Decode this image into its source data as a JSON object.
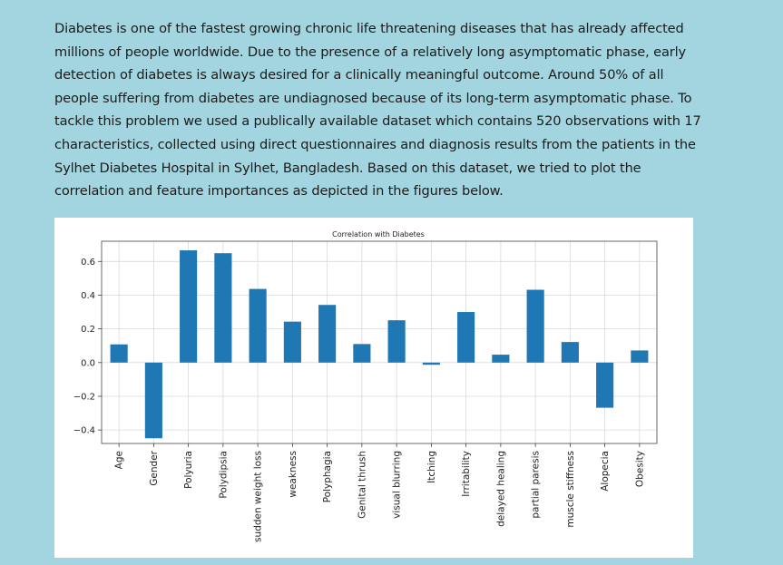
{
  "page": {
    "intro_text": "Diabetes is one of the fastest growing chronic life threatening diseases that has already affected millions of people worldwide. Due to the presence of a relatively long asymptomatic phase, early detection of diabetes is always desired for a clinically meaningful outcome. Around 50% of all people suffering from diabetes are undiagnosed because of its long-term asymptomatic phase. To tackle this problem we used a publically available dataset which contains 520 observations with 17 characteristics, collected using direct questionnaires and diagnosis results from the patients in the Sylhet Diabetes Hospital in Sylhet, Bangladesh. Based on this dataset, we tried to plot the correlation and feature importances as depicted in the figures below."
  },
  "colors": {
    "bar": "#1f77b4",
    "grid": "#d9d9d9",
    "axis": "#444444"
  },
  "chart_data": {
    "type": "bar",
    "title": "Correlation with Diabetes",
    "xlabel": "",
    "ylabel": "",
    "categories": [
      "Age",
      "Gender",
      "Polyuria",
      "Polydipsia",
      "sudden weight loss",
      "weakness",
      "Polyphagia",
      "Genital thrush",
      "visual blurring",
      "Itching",
      "Irritability",
      "delayed healing",
      "partial paresis",
      "muscle stiffness",
      "Alopecia",
      "Obesity"
    ],
    "values": [
      0.108,
      -0.449,
      0.666,
      0.649,
      0.437,
      0.243,
      0.342,
      0.11,
      0.251,
      -0.013,
      0.3,
      0.047,
      0.432,
      0.122,
      -0.268,
      0.072
    ],
    "ylim": [
      -0.48,
      0.72
    ],
    "yticks": [
      -0.4,
      -0.2,
      0.0,
      0.2,
      0.4,
      0.6
    ],
    "ytick_labels": [
      "−0.4",
      "−0.2",
      "0.0",
      "0.2",
      "0.4",
      "0.6"
    ],
    "grid": true,
    "legend": "none"
  }
}
